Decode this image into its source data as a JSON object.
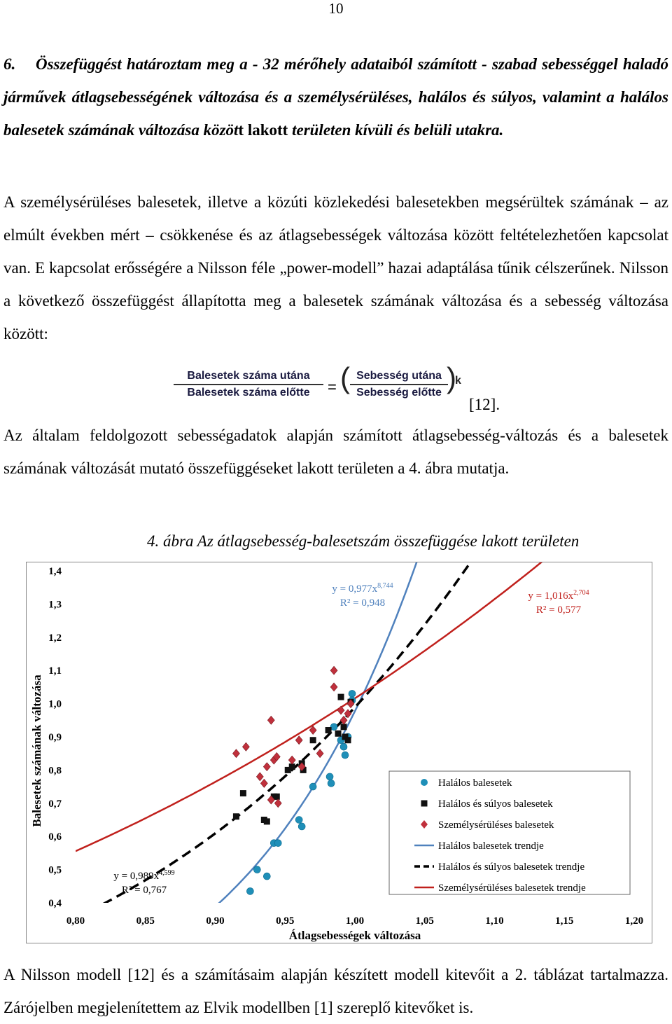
{
  "page_number": "10",
  "heading": {
    "number": "6.",
    "text": "Összefüggést határoztam meg a - 32 mérőhely adataiból számított - szabad sebességgel haladó járművek átlagsebességének változása és a személysérüléses, halálos és súlyos, valamint a halálos balesetek számának változása közöt",
    "tail": "t lakott",
    "text2": "területen kívüli és belüli utakra."
  },
  "para1": "A személysérüléses balesetek, illetve a közúti közlekedési balesetekben megsérültek számának – az elmúlt években mért – csökkenése és az átlagsebességek változása között feltételezhetően kapcsolat van. E kapcsolat erősségére a Nilsson féle „power-modell” hazai adaptálása tűnik célszerűnek. Nilsson a következő összefüggést állapította meg a balesetek számának változása és a sebesség változása között:",
  "formula": {
    "num_left": "Balesetek száma utána",
    "den_left": "Balesetek száma előtte",
    "equals": "=",
    "num_right": "Sebesség utána",
    "den_right": "Sebesség előtte",
    "exponent": "k",
    "citation": "[12]."
  },
  "para2": "Az általam feldolgozott sebességadatok alapján számított átlagsebesség-változás és a balesetek számának változását mutató összefüggéseket lakott területen a 4. ábra mutatja.",
  "figure_caption": "4. ábra   Az átlagsebesség-balesetszám összefüggése lakott területen",
  "para3": "A Nilsson modell [12] és a számításaim alapján készített modell kitevőit a 2. táblázat tartalmazza. Zárójelben megjelenítettem az Elvik modellben [1] szereplő kitevőket is.",
  "chart_data": {
    "type": "scatter",
    "xlabel": "Átlagsebességek változása",
    "ylabel": "Balesetek számának változása",
    "xlim": [
      0.8,
      1.2
    ],
    "ylim": [
      0.4,
      1.4
    ],
    "x_ticks": [
      "0,80",
      "0,85",
      "0,90",
      "0,95",
      "1,00",
      "1,05",
      "1,10",
      "1,15",
      "1,20"
    ],
    "y_ticks": [
      "0,4",
      "0,5",
      "0,6",
      "0,7",
      "0,8",
      "0,9",
      "1,0",
      "1,1",
      "1,2",
      "1,3",
      "1,4"
    ],
    "legend_position": "right",
    "series": [
      {
        "name": "Halálos balesetek",
        "marker": "circle",
        "color": "#1f8fb8",
        "points": [
          [
            0.925,
            0.435
          ],
          [
            0.93,
            0.5
          ],
          [
            0.937,
            0.48
          ],
          [
            0.942,
            0.58
          ],
          [
            0.945,
            0.58
          ],
          [
            0.96,
            0.65
          ],
          [
            0.962,
            0.63
          ],
          [
            0.97,
            0.75
          ],
          [
            0.982,
            0.78
          ],
          [
            0.983,
            0.76
          ],
          [
            0.985,
            0.93
          ],
          [
            0.99,
            0.89
          ],
          [
            0.992,
            0.87
          ],
          [
            0.993,
            0.845
          ],
          [
            0.995,
            0.9
          ],
          [
            0.998,
            1.03
          ],
          [
            0.998,
            1.01
          ]
        ]
      },
      {
        "name": "Halálos és súlyos balesetek",
        "marker": "square",
        "color": "#111111",
        "points": [
          [
            0.915,
            0.66
          ],
          [
            0.92,
            0.73
          ],
          [
            0.935,
            0.65
          ],
          [
            0.937,
            0.645
          ],
          [
            0.942,
            0.72
          ],
          [
            0.944,
            0.72
          ],
          [
            0.952,
            0.8
          ],
          [
            0.955,
            0.81
          ],
          [
            0.962,
            0.82
          ],
          [
            0.963,
            0.8
          ],
          [
            0.97,
            0.89
          ],
          [
            0.981,
            0.92
          ],
          [
            0.988,
            0.91
          ],
          [
            0.99,
            1.02
          ],
          [
            0.992,
            0.93
          ],
          [
            0.993,
            0.9
          ],
          [
            0.995,
            0.89
          ],
          [
            0.997,
            1.005
          ]
        ]
      },
      {
        "name": "Személysérüléses balesetek",
        "marker": "diamond",
        "color": "#c0303c",
        "points": [
          [
            0.915,
            0.85
          ],
          [
            0.922,
            0.87
          ],
          [
            0.932,
            0.78
          ],
          [
            0.935,
            0.76
          ],
          [
            0.937,
            0.81
          ],
          [
            0.94,
            0.71
          ],
          [
            0.94,
            0.95
          ],
          [
            0.942,
            0.83
          ],
          [
            0.944,
            0.84
          ],
          [
            0.945,
            0.7
          ],
          [
            0.955,
            0.83
          ],
          [
            0.96,
            0.89
          ],
          [
            0.962,
            0.81
          ],
          [
            0.97,
            0.92
          ],
          [
            0.975,
            0.85
          ],
          [
            0.985,
            1.1
          ],
          [
            0.985,
            1.05
          ],
          [
            0.99,
            0.98
          ],
          [
            0.992,
            0.95
          ],
          [
            0.995,
            0.97
          ],
          [
            0.997,
            1.0
          ]
        ]
      }
    ],
    "trendlines": [
      {
        "name": "Halálos balesetek trendje",
        "a": 0.977,
        "b": 8.744,
        "color": "#4f81bd",
        "style": "solid",
        "equation": {
          "prefix": "y = 0,977x",
          "exponent": "8,744",
          "r2": "R² = 0,948",
          "color": "#4f81bd"
        }
      },
      {
        "name": "Halálos és súlyos balesetek trendje",
        "a": 0.989,
        "b": 4.599,
        "color": "#000000",
        "style": "dashed",
        "equation": {
          "prefix": "y = 0,989x",
          "exponent": "4,599",
          "r2": "R² = 0,767",
          "color": "#000000"
        }
      },
      {
        "name": "Személysérüléses balesetek trendje",
        "a": 1.016,
        "b": 2.704,
        "color": "#c0201c",
        "style": "solid",
        "equation": {
          "prefix": "y = 1,016x",
          "exponent": "2,704",
          "r2": "R² = 0,577",
          "color": "#c0201c"
        }
      }
    ]
  }
}
